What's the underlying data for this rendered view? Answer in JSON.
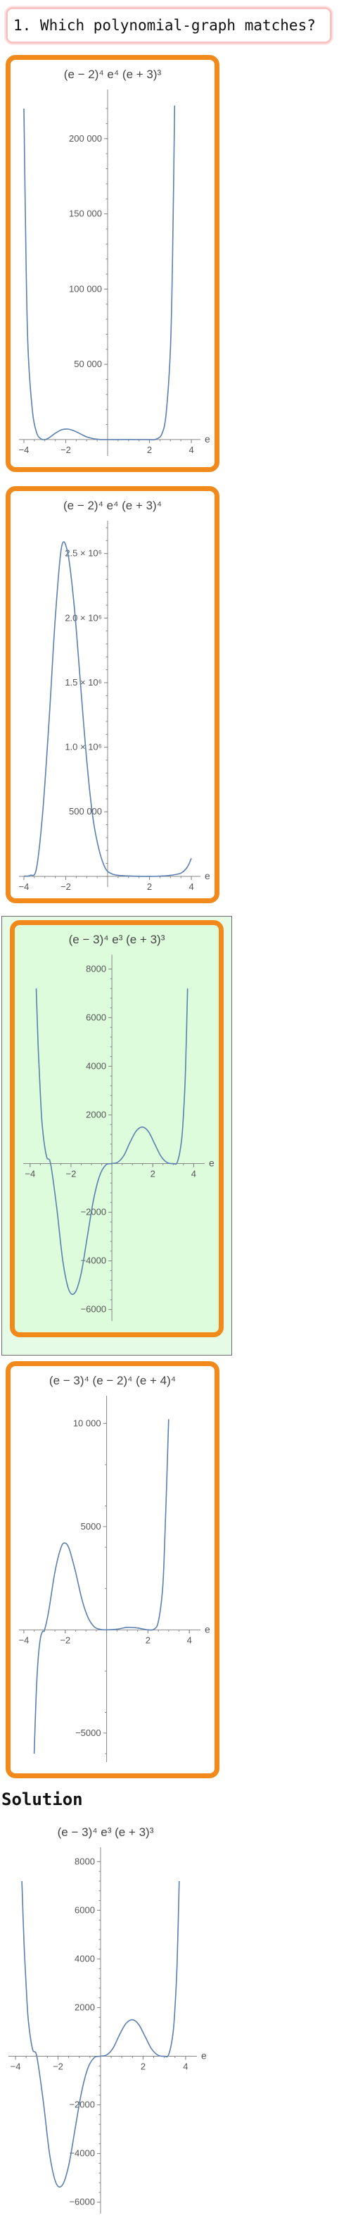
{
  "question": {
    "text": "1. Which polynomial-graph matches?"
  },
  "solution": {
    "heading": "Solution"
  },
  "colors": {
    "option_border": "#f28a1b",
    "selected_bg": "#dcfcdc",
    "curve": "#5b7fb0",
    "question_border": "#f7c4c4"
  },
  "chart_data": [
    {
      "id": "option-1",
      "type": "line",
      "title": "(e − 2)⁴ e⁴ (e + 3)³",
      "xlabel": "e",
      "xlim": [
        -4.1,
        4.3
      ],
      "ylim": [
        -8000,
        228000
      ],
      "x_ticks": [
        -4,
        -2,
        2,
        4
      ],
      "x_tick_labels": [
        "−4",
        "−2",
        "2",
        "4"
      ],
      "y_ticks": [
        50000,
        100000,
        150000,
        200000
      ],
      "y_tick_labels": [
        "50 000",
        "100 000",
        "150 000",
        "200 000"
      ],
      "series": [
        {
          "x": [
            -4,
            -3.9,
            -3.8,
            -3.6,
            -3.4,
            -3.2,
            -3,
            -2.8,
            -2.5,
            -2.2,
            -1.9,
            -1.6,
            -1.3,
            -1,
            -0.6,
            -0.3,
            0,
            0.5,
            1,
            1.5,
            2,
            2.3,
            2.6,
            2.8,
            3,
            3.1,
            3.2
          ],
          "y": [
            220000,
            120000,
            60000,
            20000,
            5000,
            600,
            0,
            1200,
            4200,
            6500,
            7000,
            5800,
            3800,
            1800,
            400,
            30,
            0,
            10,
            40,
            20,
            0,
            200,
            4000,
            18000,
            60000,
            120000,
            222000
          ]
        }
      ]
    },
    {
      "id": "option-2",
      "type": "line",
      "title": "(e − 2)⁴ e⁴ (e + 3)⁴",
      "xlabel": "e",
      "xlim": [
        -4.1,
        4.3
      ],
      "ylim": [
        -50000,
        2700000
      ],
      "x_ticks": [
        -4,
        -2,
        2,
        4
      ],
      "x_tick_labels": [
        "−4",
        "−2",
        "2",
        "4"
      ],
      "y_ticks": [
        500000,
        1000000,
        1500000,
        2000000,
        2500000
      ],
      "y_tick_labels": [
        "500 000",
        "1.0 × 10⁶",
        "1.5 × 10⁶",
        "2.0 × 10⁶",
        "2.5 × 10⁶"
      ],
      "series": [
        {
          "x": [
            -4,
            -3.7,
            -3.4,
            -3.1,
            -2.8,
            -2.5,
            -2.2,
            -1.9,
            -1.6,
            -1.3,
            -1,
            -0.7,
            -0.4,
            -0.1,
            0.2,
            0.5,
            1,
            1.5,
            2,
            2.5,
            3,
            3.5,
            3.8,
            4
          ],
          "y": [
            2000,
            8000,
            60000,
            500000,
            1200000,
            2000000,
            2550000,
            2500000,
            2100000,
            1500000,
            900000,
            450000,
            200000,
            60000,
            20000,
            8000,
            3000,
            1000,
            0,
            2000,
            8000,
            25000,
            70000,
            140000
          ]
        }
      ]
    },
    {
      "id": "option-3",
      "type": "line",
      "selected": true,
      "title": "(e − 3)⁴ e³ (e + 3)³",
      "xlabel": "e",
      "xlim": [
        -4.2,
        4.4
      ],
      "ylim": [
        -6300,
        8300
      ],
      "x_ticks": [
        -4,
        -2,
        2,
        4
      ],
      "x_tick_labels": [
        "−4",
        "−2",
        "2",
        "4"
      ],
      "y_ticks": [
        -6000,
        -4000,
        -2000,
        2000,
        4000,
        6000,
        8000
      ],
      "y_tick_labels": [
        "−6000",
        "−4000",
        "−2000",
        "2000",
        "4000",
        "6000",
        "8000"
      ],
      "series": [
        {
          "x": [
            -3.7,
            -3.6,
            -3.5,
            -3.4,
            -3.2,
            -3,
            -2.7,
            -2.4,
            -2.1,
            -1.8,
            -1.5,
            -1.2,
            -0.9,
            -0.6,
            -0.3,
            0,
            0.3,
            0.6,
            0.9,
            1.2,
            1.5,
            1.8,
            2.1,
            2.4,
            2.7,
            3,
            3.2,
            3.4,
            3.5,
            3.6,
            3.7
          ],
          "y": [
            7200,
            4700,
            2900,
            1500,
            300,
            0,
            -1800,
            -4000,
            -5200,
            -5300,
            -4500,
            -3000,
            -1500,
            -500,
            -60,
            0,
            60,
            350,
            900,
            1350,
            1500,
            1300,
            800,
            300,
            40,
            0,
            60,
            900,
            2000,
            3800,
            7200
          ]
        }
      ]
    },
    {
      "id": "option-4",
      "type": "line",
      "title": "(e − 3)⁴ (e − 2)⁴ (e + 4)⁴",
      "xlabel": "e",
      "xlim": [
        -4.1,
        4.4
      ],
      "ylim": [
        -6200,
        11000
      ],
      "x_ticks": [
        -4,
        -2,
        2,
        4
      ],
      "x_tick_labels": [
        "−4",
        "−2",
        "2",
        "4"
      ],
      "y_ticks": [
        -5000,
        5000,
        10000
      ],
      "y_tick_labels": [
        "−5000",
        "5000",
        "10 000"
      ],
      "series": [
        {
          "x": [
            -3.5,
            -3.4,
            -3.3,
            -3.2,
            -3.1,
            -3,
            -2.8,
            -2.5,
            -2.2,
            -2,
            -1.8,
            -1.5,
            -1.2,
            -0.9,
            -0.6,
            -0.3,
            0,
            0.5,
            1,
            1.5,
            2,
            2.3,
            2.5,
            2.7,
            2.8,
            2.9,
            3
          ],
          "y": [
            -6000,
            -3000,
            -1300,
            -400,
            -80,
            0,
            900,
            2800,
            4000,
            4200,
            3900,
            2800,
            1500,
            600,
            150,
            20,
            0,
            30,
            120,
            90,
            0,
            40,
            400,
            1900,
            4000,
            7000,
            10200
          ]
        }
      ]
    },
    {
      "id": "solution",
      "type": "line",
      "title": "(e − 3)⁴ e³ (e + 3)³",
      "xlabel": "e",
      "xlim": [
        -4.2,
        4.4
      ],
      "ylim": [
        -6300,
        8300
      ],
      "x_ticks": [
        -4,
        -2,
        2,
        4
      ],
      "x_tick_labels": [
        "−4",
        "−2",
        "2",
        "4"
      ],
      "y_ticks": [
        -6000,
        -4000,
        -2000,
        2000,
        4000,
        6000,
        8000
      ],
      "y_tick_labels": [
        "−6000",
        "−4000",
        "−2000",
        "2000",
        "4000",
        "6000",
        "8000"
      ],
      "series": [
        {
          "x": [
            -3.7,
            -3.6,
            -3.5,
            -3.4,
            -3.2,
            -3,
            -2.7,
            -2.4,
            -2.1,
            -1.8,
            -1.5,
            -1.2,
            -0.9,
            -0.6,
            -0.3,
            0,
            0.3,
            0.6,
            0.9,
            1.2,
            1.5,
            1.8,
            2.1,
            2.4,
            2.7,
            3,
            3.2,
            3.4,
            3.5,
            3.6,
            3.7
          ],
          "y": [
            7200,
            4700,
            2900,
            1500,
            300,
            0,
            -1800,
            -4000,
            -5200,
            -5300,
            -4500,
            -3000,
            -1500,
            -500,
            -60,
            0,
            60,
            350,
            900,
            1350,
            1500,
            1300,
            800,
            300,
            40,
            0,
            60,
            900,
            2000,
            3800,
            7200
          ]
        }
      ]
    }
  ]
}
